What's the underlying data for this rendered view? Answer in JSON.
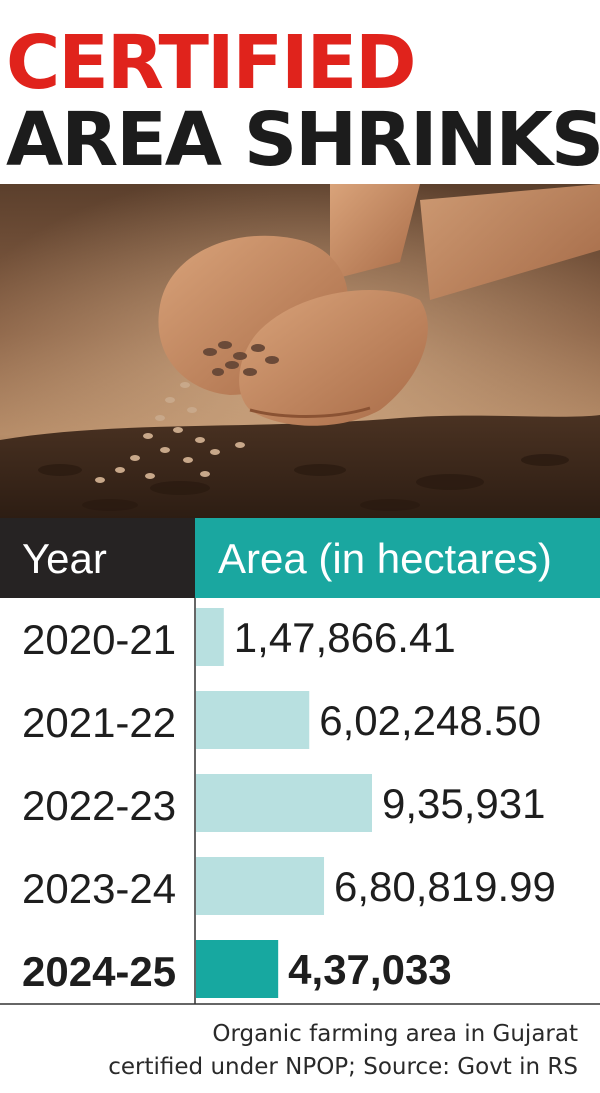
{
  "headline": {
    "line1": "CERTIFIED",
    "line2": "AREA SHRINKS"
  },
  "photo": {
    "subject": "hands-pouring-seeds-onto-soil"
  },
  "table": {
    "col_year": "Year",
    "col_area": "Area (in hectares)"
  },
  "chart_data": {
    "type": "bar",
    "orientation": "horizontal",
    "categories": [
      "2020-21",
      "2021-22",
      "2022-23",
      "2023-24",
      "2024-25"
    ],
    "values": [
      147866.41,
      602248.5,
      935931,
      680819.99,
      437033
    ],
    "value_labels": [
      "1,47,866.41",
      "6,02,248.50",
      "9,35,931",
      "6,80,819.99",
      "4,37,033"
    ],
    "highlight_index": 4,
    "unit": "hectares",
    "xlim": [
      0,
      935931
    ],
    "grid": false,
    "legend": "none"
  },
  "footnote": {
    "line1": "Organic farming area in Gujarat",
    "line2": "certified under NPOP; Source: Govt in RS"
  },
  "colors": {
    "headline_red": "#e0231c",
    "headline_dark": "#1c1c1c",
    "header_dark": "#262323",
    "header_teal": "#1aa7a0",
    "bar_light": "#b8e0e0",
    "bar_highlight": "#17a8a0",
    "rule": "#333333"
  }
}
